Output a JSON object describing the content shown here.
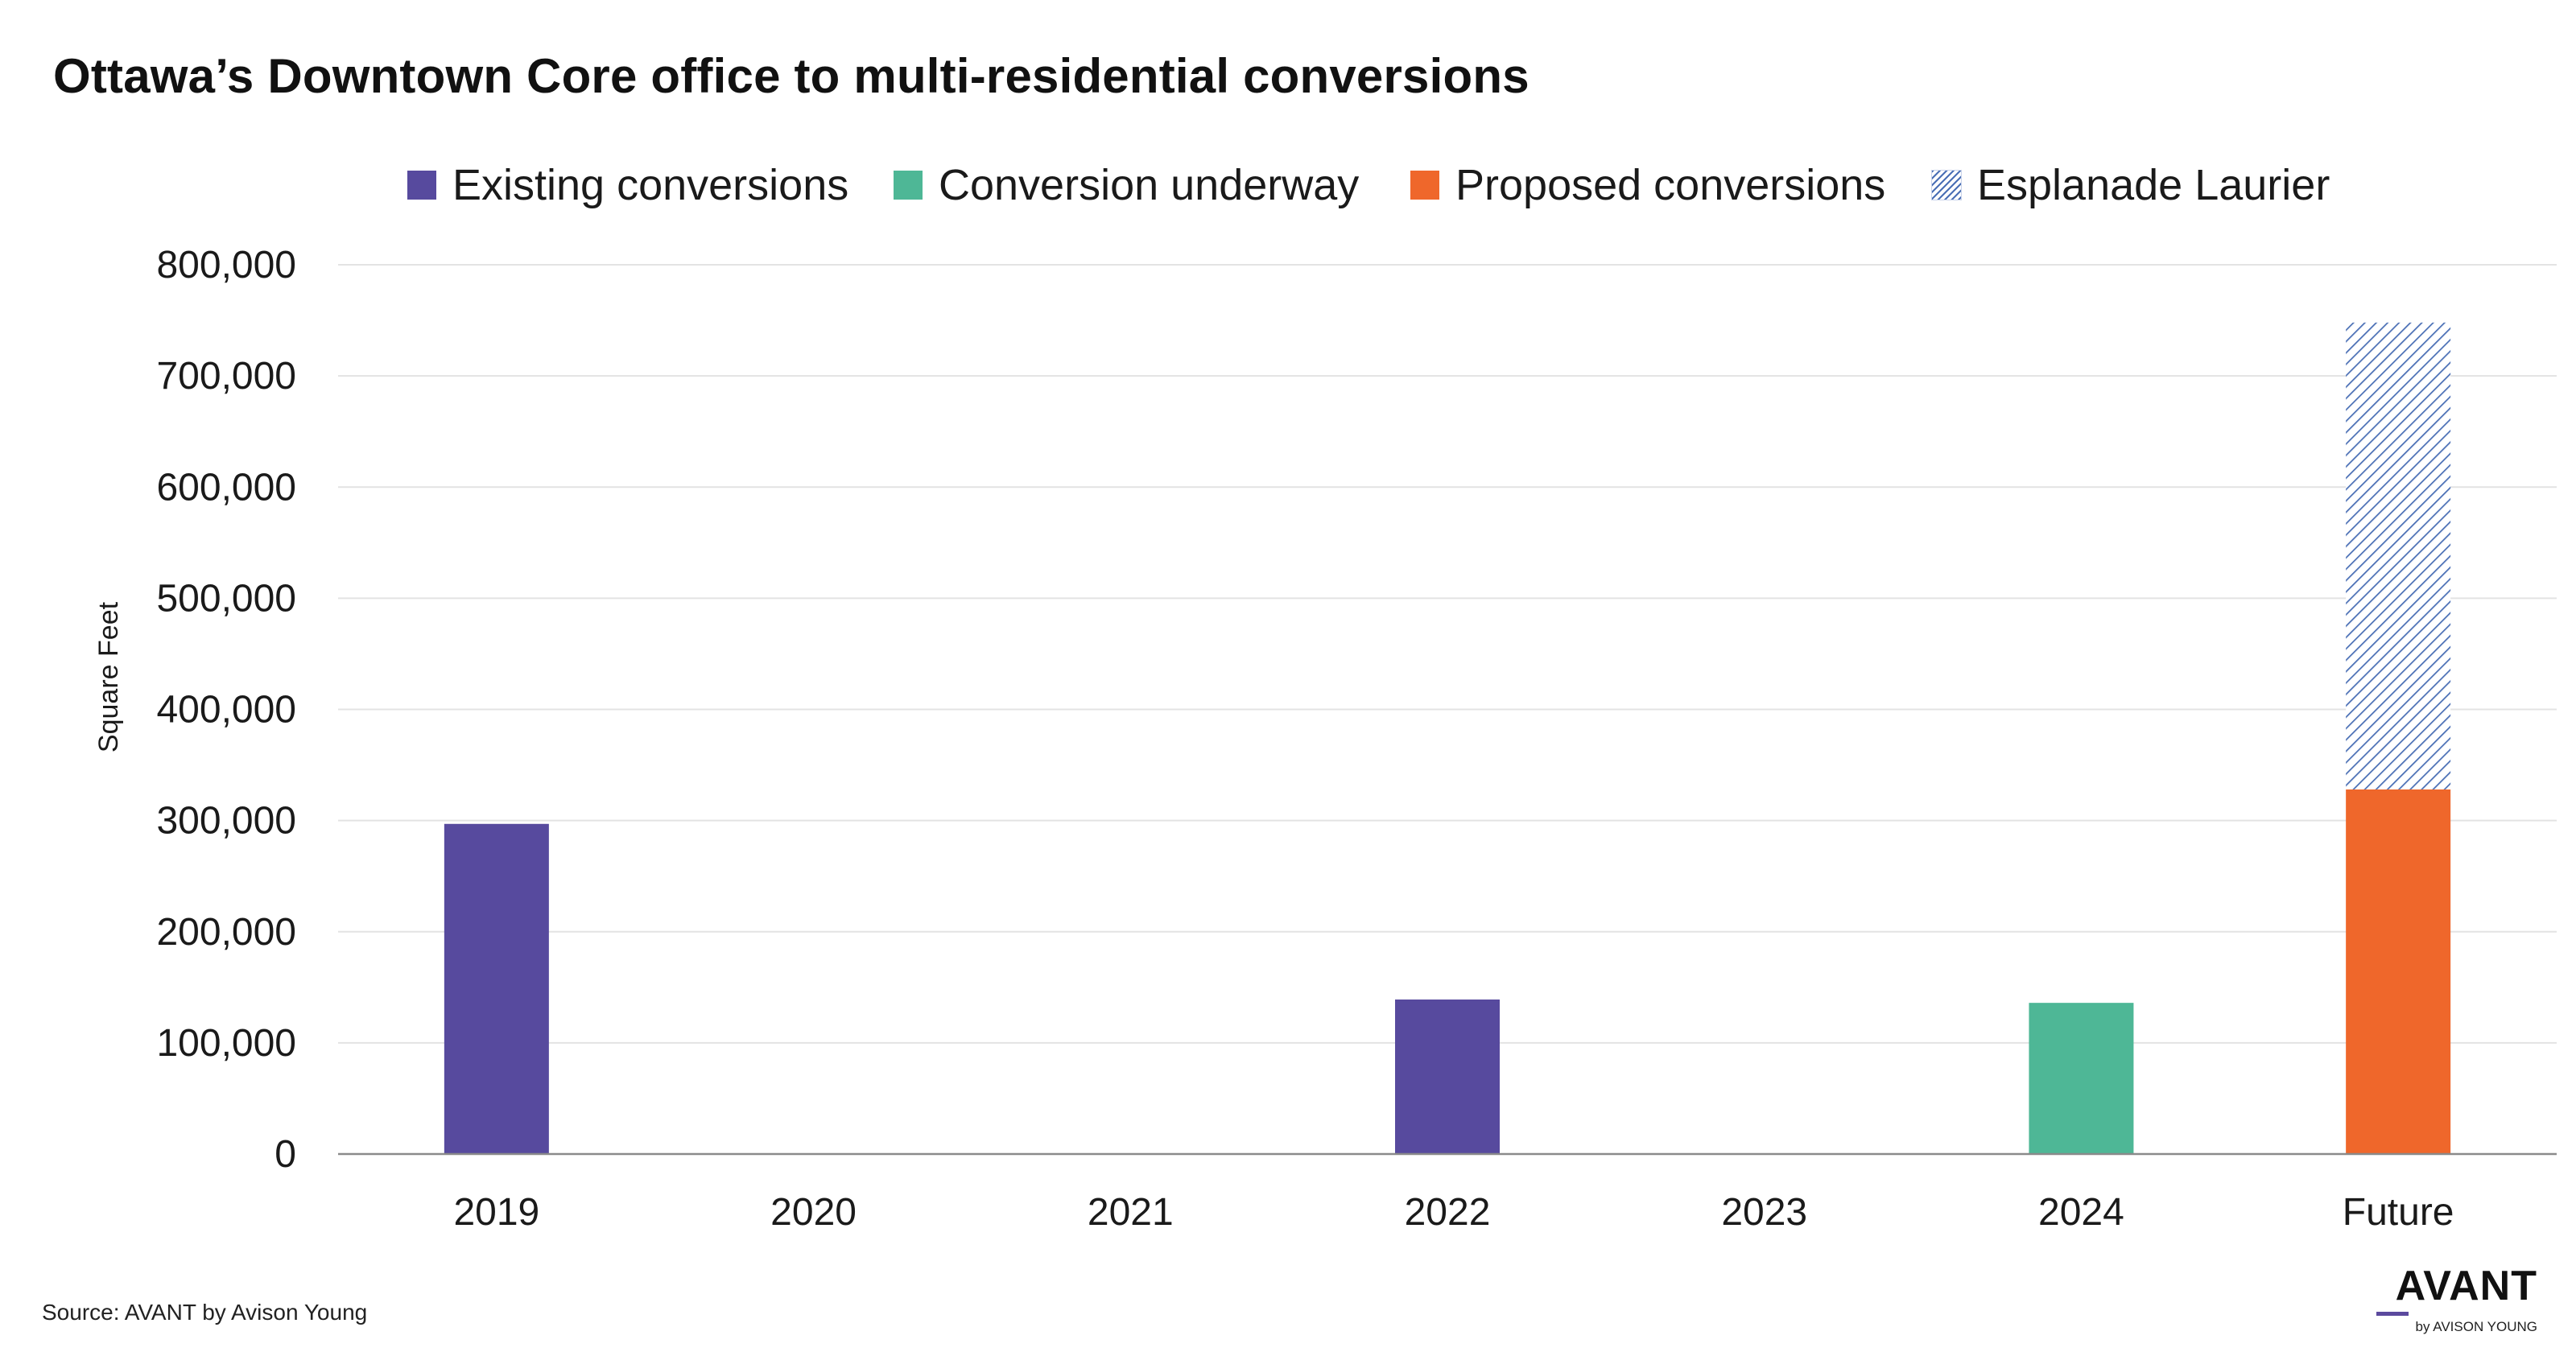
{
  "chart_data": {
    "type": "bar",
    "stacked": true,
    "title": "Ottawa’s Downtown Core office to multi-residential conversions",
    "xlabel": "",
    "ylabel": "Square Feet",
    "ylim": [
      0,
      800000
    ],
    "yticks": [
      0,
      100000,
      200000,
      300000,
      400000,
      500000,
      600000,
      700000,
      800000
    ],
    "ytick_labels": [
      "0",
      "100,000",
      "200,000",
      "300,000",
      "400,000",
      "500,000",
      "600,000",
      "700,000",
      "800,000"
    ],
    "grid": true,
    "legend_position": "top",
    "categories": [
      "2019",
      "2020",
      "2021",
      "2022",
      "2023",
      "2024",
      "Future"
    ],
    "series": [
      {
        "name": "Existing conversions",
        "color": "#574a9e",
        "pattern": "solid",
        "values": [
          297000,
          0,
          0,
          139000,
          0,
          0,
          0
        ]
      },
      {
        "name": "Conversion underway",
        "color": "#4eb796",
        "pattern": "solid",
        "values": [
          0,
          0,
          0,
          0,
          0,
          136000,
          0
        ]
      },
      {
        "name": "Proposed conversions",
        "color": "#ef672b",
        "pattern": "solid",
        "values": [
          0,
          0,
          0,
          0,
          0,
          0,
          328000
        ]
      },
      {
        "name": "Esplanade Laurier",
        "color": "#4a6fb5",
        "pattern": "hatch",
        "values": [
          0,
          0,
          0,
          0,
          0,
          0,
          420000
        ]
      }
    ]
  },
  "source": "Source: AVANT by Avison Young",
  "brand": {
    "name": "AVANT",
    "subtitle": "by AVISON YOUNG"
  }
}
